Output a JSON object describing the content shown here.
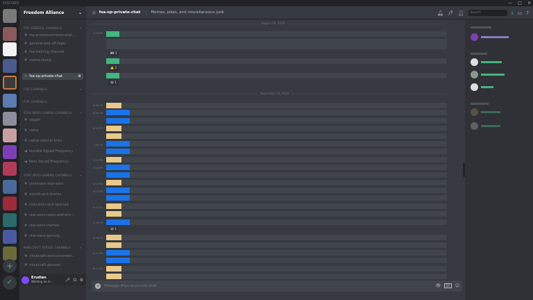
{
  "window": {
    "title": "DISCORD",
    "controls": [
      "—",
      "□",
      "✕"
    ]
  },
  "server": {
    "name": "Freedom Alliance"
  },
  "categories": [
    {
      "label": "FOR GENERAL CHANNELS"
    },
    {
      "label": "FOR CHANNELS"
    },
    {
      "label": "FOR CHANNELS"
    },
    {
      "label": "STAR WARS GAMING CHANNELS"
    },
    {
      "label": "STAR WARS GAMING CHANNELS"
    },
    {
      "label": "MINECRAFT SERVER CHANNELS"
    }
  ],
  "channels": [
    "fsa-announcements-and...",
    "general-and-off-topic",
    "fsa-training-channel",
    "meme-dump",
    "fsa-op-private-chat",
    "swgoh",
    "swtor",
    "swtor-referral-links",
    "Rumble Squad Frequency",
    "Bear Squad Frequency",
    "cinematic-star-wars",
    "novels-and-stories",
    "television-and-specials",
    "star-wars-news-and-ann...",
    "star-wars-memes",
    "star-wars-gaming",
    "minecraft-announcemen...",
    "minecraft-general"
  ],
  "active_channel": "fsa-op-private-chat",
  "channel_header": {
    "name": "fsa-op-private-chat",
    "topic": "Memes, jokes, and miscellaneous junk"
  },
  "search": {
    "placeholder": "Search"
  },
  "dividers": [
    "August 18, 2020",
    "September 14, 2020"
  ],
  "timestamps": [
    "2:03 PM",
    "5:46 PM",
    "6:48 PM",
    "6:49 PM",
    "7:06 PM",
    "4:13 PM",
    "4:14 PM",
    "4:53 PM",
    "4:54 PM",
    "5:00 PM",
    "5:38 PM",
    "5:56 PM",
    "6:10 PM",
    "6:11 PM"
  ],
  "reactions": [
    {
      "emoji": "30",
      "count": "1"
    },
    {
      "emoji": "👍",
      "count": "1"
    },
    {
      "emoji": "😀",
      "count": "1"
    },
    {
      "emoji": "😀",
      "count": "1"
    }
  ],
  "composer": {
    "placeholder": "Message #fsa-op-private-chat"
  },
  "user": {
    "name": "Erudian",
    "status": "Working on m..."
  },
  "colors": {
    "green": "#43b581",
    "blue": "#1a73e8",
    "tan": "#e8c98a",
    "bg": "#36393f"
  }
}
